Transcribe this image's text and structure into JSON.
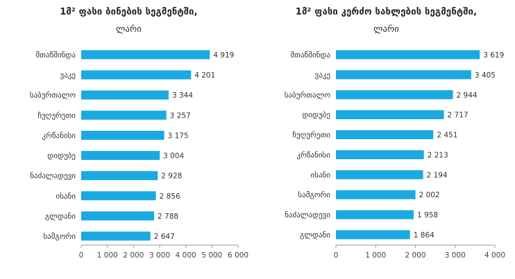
{
  "chart_data": [
    {
      "type": "bar",
      "orientation": "horizontal",
      "title": "1მ² ფასი ბინების სეგმენტში,",
      "subtitle": "ლარი",
      "categories": [
        "მთაწმინდა",
        "ვაკე",
        "საბურთალო",
        "ჩუღურეთი",
        "კრწანისი",
        "დიდუბე",
        "ნაძალადევი",
        "ისანი",
        "გლდანი",
        "სამგორი"
      ],
      "values": [
        4919,
        4201,
        3344,
        3257,
        3175,
        3004,
        2928,
        2856,
        2788,
        2647
      ],
      "value_labels": [
        "4 919",
        "4 201",
        "3 344",
        "3 257",
        "3 175",
        "3 004",
        "2 928",
        "2 856",
        "2 788",
        "2 647"
      ],
      "xlim": [
        0,
        6000
      ],
      "ticks": [
        0,
        1000,
        2000,
        3000,
        4000,
        5000,
        6000
      ],
      "tick_labels": [
        "0",
        "1 000",
        "2 000",
        "3 000",
        "4 000",
        "5 000",
        "6 000"
      ],
      "grid": false,
      "legend": "none",
      "bar_color": "#1aa9e0"
    },
    {
      "type": "bar",
      "orientation": "horizontal",
      "title": "1მ² ფასი კერძო სახლების სეგმენტში,",
      "subtitle": "ლარი",
      "categories": [
        "მთაწმინდა",
        "ვაკე",
        "საბურთალო",
        "დიდუბე",
        "ჩუღურეთი",
        "კრწანისი",
        "ისანი",
        "სამგორი",
        "ნაძალადევი",
        "გლდანი"
      ],
      "values": [
        3619,
        3405,
        2944,
        2717,
        2451,
        2213,
        2194,
        2002,
        1958,
        1864
      ],
      "value_labels": [
        "3 619",
        "3 405",
        "2 944",
        "2 717",
        "2 451",
        "2 213",
        "2 194",
        "2 002",
        "1 958",
        "1 864"
      ],
      "xlim": [
        0,
        4000
      ],
      "ticks": [
        0,
        1000,
        2000,
        3000,
        4000
      ],
      "tick_labels": [
        "0",
        "1 000",
        "2 000",
        "3 000",
        "4 000"
      ],
      "grid": false,
      "legend": "none",
      "bar_color": "#1aa9e0"
    }
  ]
}
